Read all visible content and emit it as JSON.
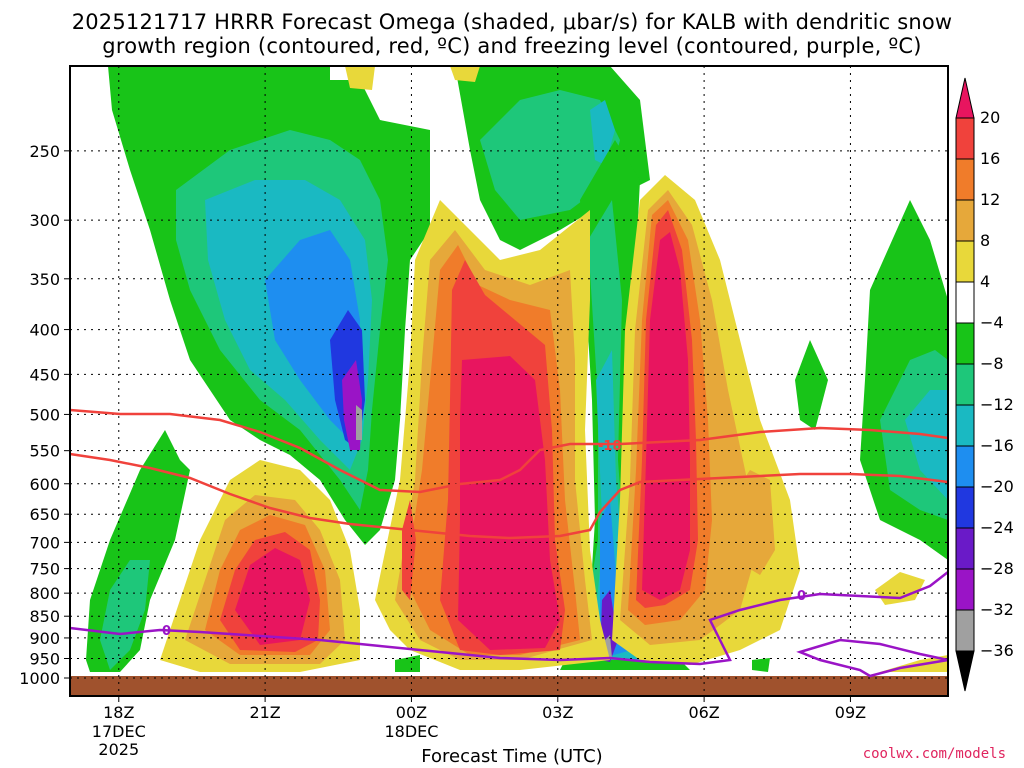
{
  "title_line1": "2025121717 HRRR Forecast Omega (shaded, μbar/s) for KALB with dendritic snow",
  "title_line2": "growth region (contoured, red, ºC) and freezing level (contoured, purple, ºC)",
  "credit": "coolwx.com/models",
  "chart_data": {
    "type": "contour-cross-section",
    "title": "2025121717 HRRR Forecast Omega (shaded, μbar/s) for KALB with dendritic snow growth region (contoured, red, ºC) and freezing level (contoured, purple, ºC)",
    "xlabel": "Forecast Time (UTC)",
    "ylabel": "",
    "y_log_scale": true,
    "y_inverted": true,
    "ylim": [
      1000,
      200
    ],
    "y_ticks": [
      250,
      300,
      350,
      400,
      450,
      500,
      550,
      600,
      650,
      700,
      750,
      800,
      850,
      900,
      950,
      1000
    ],
    "x_ticks": [
      {
        "label": "18Z",
        "sub1": "17DEC",
        "sub2": "2025",
        "hour": 0
      },
      {
        "label": "21Z",
        "sub1": "",
        "sub2": "",
        "hour": 3
      },
      {
        "label": "00Z",
        "sub1": "18DEC",
        "sub2": "",
        "hour": 6
      },
      {
        "label": "03Z",
        "sub1": "",
        "sub2": "",
        "hour": 9
      },
      {
        "label": "06Z",
        "sub1": "",
        "sub2": "",
        "hour": 12
      },
      {
        "label": "09Z",
        "sub1": "",
        "sub2": "",
        "hour": 15
      }
    ],
    "xlim_hours": [
      -1,
      17
    ],
    "grid": true,
    "colorbar": {
      "labels": [
        "20",
        "16",
        "12",
        "8",
        "4",
        "−4",
        "−8",
        "−12",
        "−16",
        "−20",
        "−24",
        "−28",
        "−32",
        "−36"
      ],
      "colors": [
        "#e8155f",
        "#f0423c",
        "#f07c2a",
        "#e6a83a",
        "#e8d83a",
        "#ffffff",
        "#18c418",
        "#1ec77a",
        "#1ab9c2",
        "#1e8ef0",
        "#2038e0",
        "#6a1ac8",
        "#9a14c6",
        "#a0a0a0",
        "#000000"
      ]
    },
    "contour_labels": {
      "dgz": "-18",
      "freezing": "0"
    },
    "surface_color": "#a0522d"
  }
}
